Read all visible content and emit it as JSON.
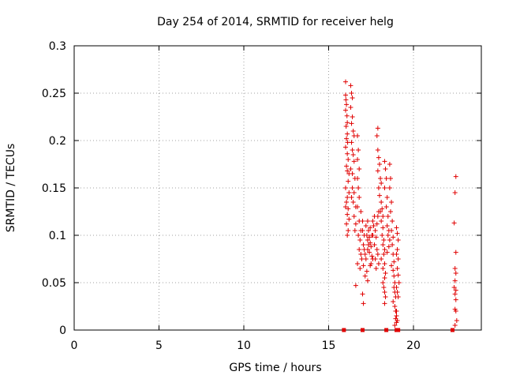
{
  "chart_data": {
    "type": "scatter",
    "title": "Day 254 of 2014, SRMTID for receiver helg",
    "xlabel": "GPS time / hours",
    "ylabel": "SRMTID / TECUs",
    "xlim": [
      0,
      24
    ],
    "ylim": [
      0,
      0.3
    ],
    "xticks": [
      0,
      5,
      10,
      15,
      20
    ],
    "yticks": [
      0,
      0.05,
      0.1,
      0.15,
      0.2,
      0.25,
      0.3
    ],
    "xtick_labels": [
      "0",
      "5",
      "10",
      "15",
      "20"
    ],
    "ytick_labels": [
      "0",
      "0.05",
      "0.1",
      "0.15",
      "0.2",
      "0.25",
      "0.3"
    ],
    "grid": true,
    "legend": "none",
    "marker": "plus",
    "series": [
      {
        "color": "#e00000",
        "points": [
          [
            16.0,
            0.262
          ],
          [
            16.0,
            0.248
          ],
          [
            16.02,
            0.243
          ],
          [
            16.05,
            0.238
          ],
          [
            16.0,
            0.232
          ],
          [
            16.08,
            0.226
          ],
          [
            16.1,
            0.219
          ],
          [
            16.03,
            0.215
          ],
          [
            16.1,
            0.207
          ],
          [
            16.05,
            0.202
          ],
          [
            16.12,
            0.198
          ],
          [
            16.0,
            0.193
          ],
          [
            16.1,
            0.186
          ],
          [
            16.15,
            0.18
          ],
          [
            16.05,
            0.173
          ],
          [
            16.1,
            0.168
          ],
          [
            16.2,
            0.165
          ],
          [
            16.15,
            0.157
          ],
          [
            16.0,
            0.15
          ],
          [
            16.2,
            0.145
          ],
          [
            16.1,
            0.14
          ],
          [
            16.05,
            0.135
          ],
          [
            16.0,
            0.13
          ],
          [
            16.15,
            0.128
          ],
          [
            16.1,
            0.122
          ],
          [
            16.2,
            0.117
          ],
          [
            16.05,
            0.112
          ],
          [
            16.15,
            0.105
          ],
          [
            16.1,
            0.1
          ],
          [
            16.3,
            0.258
          ],
          [
            16.35,
            0.25
          ],
          [
            16.4,
            0.245
          ],
          [
            16.3,
            0.235
          ],
          [
            16.4,
            0.225
          ],
          [
            16.35,
            0.218
          ],
          [
            16.45,
            0.21
          ],
          [
            16.5,
            0.205
          ],
          [
            16.35,
            0.198
          ],
          [
            16.4,
            0.19
          ],
          [
            16.45,
            0.185
          ],
          [
            16.5,
            0.178
          ],
          [
            16.3,
            0.17
          ],
          [
            16.4,
            0.165
          ],
          [
            16.55,
            0.16
          ],
          [
            16.4,
            0.15
          ],
          [
            16.5,
            0.145
          ],
          [
            16.35,
            0.14
          ],
          [
            16.45,
            0.135
          ],
          [
            16.6,
            0.13
          ],
          [
            16.5,
            0.12
          ],
          [
            16.6,
            0.112
          ],
          [
            16.55,
            0.105
          ],
          [
            16.7,
            0.205
          ],
          [
            16.75,
            0.19
          ],
          [
            16.7,
            0.18
          ],
          [
            16.8,
            0.17
          ],
          [
            16.7,
            0.16
          ],
          [
            16.75,
            0.15
          ],
          [
            16.8,
            0.14
          ],
          [
            16.7,
            0.13
          ],
          [
            16.9,
            0.125
          ],
          [
            16.8,
            0.115
          ],
          [
            16.9,
            0.105
          ],
          [
            16.75,
            0.1
          ],
          [
            16.85,
            0.095
          ],
          [
            16.8,
            0.085
          ],
          [
            16.9,
            0.08
          ],
          [
            16.95,
            0.075
          ],
          [
            16.7,
            0.07
          ],
          [
            16.85,
            0.065
          ],
          [
            17.0,
            0.115
          ],
          [
            17.0,
            0.105
          ],
          [
            17.1,
            0.1
          ],
          [
            17.05,
            0.09
          ],
          [
            17.1,
            0.085
          ],
          [
            17.15,
            0.08
          ],
          [
            17.2,
            0.075
          ],
          [
            17.05,
            0.068
          ],
          [
            17.25,
            0.062
          ],
          [
            17.15,
            0.057
          ],
          [
            17.3,
            0.052
          ],
          [
            16.6,
            0.047
          ],
          [
            17.0,
            0.038
          ],
          [
            17.05,
            0.028
          ],
          [
            17.2,
            0.11
          ],
          [
            17.3,
            0.115
          ],
          [
            17.35,
            0.105
          ],
          [
            17.4,
            0.098
          ],
          [
            17.45,
            0.092
          ],
          [
            17.5,
            0.088
          ],
          [
            17.3,
            0.085
          ],
          [
            17.4,
            0.082
          ],
          [
            17.55,
            0.078
          ],
          [
            17.6,
            0.075
          ],
          [
            17.5,
            0.07
          ],
          [
            17.45,
            0.068
          ],
          [
            17.3,
            0.095
          ],
          [
            17.35,
            0.09
          ],
          [
            17.25,
            0.1
          ],
          [
            17.45,
            0.108
          ],
          [
            17.55,
            0.1
          ],
          [
            17.6,
            0.1
          ],
          [
            17.65,
            0.11
          ],
          [
            17.7,
            0.12
          ],
          [
            17.6,
            0.115
          ],
          [
            17.75,
            0.105
          ],
          [
            17.8,
            0.098
          ],
          [
            17.7,
            0.09
          ],
          [
            17.85,
            0.085
          ],
          [
            17.9,
            0.08
          ],
          [
            17.75,
            0.075
          ],
          [
            17.95,
            0.07
          ],
          [
            17.8,
            0.065
          ],
          [
            17.85,
            0.112
          ],
          [
            17.9,
            0.12
          ],
          [
            17.95,
            0.125
          ],
          [
            17.9,
            0.213
          ],
          [
            17.85,
            0.205
          ],
          [
            17.9,
            0.19
          ],
          [
            17.95,
            0.182
          ],
          [
            18.0,
            0.175
          ],
          [
            17.9,
            0.168
          ],
          [
            18.05,
            0.16
          ],
          [
            18.1,
            0.155
          ],
          [
            17.95,
            0.15
          ],
          [
            18.0,
            0.142
          ],
          [
            18.1,
            0.135
          ],
          [
            18.15,
            0.128
          ],
          [
            18.05,
            0.125
          ],
          [
            18.2,
            0.12
          ],
          [
            18.1,
            0.115
          ],
          [
            18.2,
            0.108
          ],
          [
            18.15,
            0.1
          ],
          [
            18.25,
            0.095
          ],
          [
            18.2,
            0.09
          ],
          [
            18.3,
            0.085
          ],
          [
            18.25,
            0.08
          ],
          [
            18.1,
            0.075
          ],
          [
            18.3,
            0.07
          ],
          [
            18.2,
            0.065
          ],
          [
            18.35,
            0.06
          ],
          [
            18.3,
            0.055
          ],
          [
            18.2,
            0.05
          ],
          [
            18.25,
            0.045
          ],
          [
            18.3,
            0.04
          ],
          [
            18.35,
            0.035
          ],
          [
            18.3,
            0.028
          ],
          [
            18.3,
            0.178
          ],
          [
            18.35,
            0.17
          ],
          [
            18.4,
            0.16
          ],
          [
            18.3,
            0.15
          ],
          [
            18.45,
            0.14
          ],
          [
            18.4,
            0.13
          ],
          [
            18.5,
            0.12
          ],
          [
            18.45,
            0.11
          ],
          [
            18.55,
            0.105
          ],
          [
            18.5,
            0.1
          ],
          [
            18.6,
            0.095
          ],
          [
            18.55,
            0.088
          ],
          [
            18.45,
            0.082
          ],
          [
            18.6,
            0.175
          ],
          [
            18.65,
            0.16
          ],
          [
            18.6,
            0.15
          ],
          [
            18.7,
            0.135
          ],
          [
            18.65,
            0.125
          ],
          [
            18.75,
            0.115
          ],
          [
            18.7,
            0.105
          ],
          [
            18.8,
            0.098
          ],
          [
            18.75,
            0.09
          ],
          [
            18.8,
            0.08
          ],
          [
            18.85,
            0.072
          ],
          [
            18.7,
            0.068
          ],
          [
            18.8,
            0.063
          ],
          [
            18.85,
            0.057
          ],
          [
            18.9,
            0.05
          ],
          [
            18.85,
            0.045
          ],
          [
            18.9,
            0.04
          ],
          [
            18.95,
            0.035
          ],
          [
            18.8,
            0.03
          ],
          [
            18.9,
            0.025
          ],
          [
            18.95,
            0.02
          ],
          [
            19.0,
            0.015
          ],
          [
            18.95,
            0.012
          ],
          [
            19.0,
            0.008
          ],
          [
            18.9,
            0.005
          ],
          [
            19.0,
            0.108
          ],
          [
            19.05,
            0.102
          ],
          [
            19.1,
            0.095
          ],
          [
            19.05,
            0.085
          ],
          [
            19.0,
            0.08
          ],
          [
            19.1,
            0.075
          ],
          [
            19.05,
            0.065
          ],
          [
            19.1,
            0.058
          ],
          [
            19.15,
            0.05
          ],
          [
            19.0,
            0.045
          ],
          [
            19.05,
            0.04
          ],
          [
            19.1,
            0.035
          ],
          [
            19.0,
            0.02
          ],
          [
            19.05,
            0.01
          ],
          [
            22.5,
            0.162
          ],
          [
            22.45,
            0.145
          ],
          [
            22.4,
            0.113
          ],
          [
            22.5,
            0.082
          ],
          [
            22.45,
            0.065
          ],
          [
            22.5,
            0.06
          ],
          [
            22.45,
            0.052
          ],
          [
            22.4,
            0.045
          ],
          [
            22.5,
            0.042
          ],
          [
            22.45,
            0.038
          ],
          [
            22.5,
            0.032
          ],
          [
            22.45,
            0.022
          ],
          [
            22.5,
            0.02
          ],
          [
            22.55,
            0.01
          ],
          [
            22.45,
            0.005
          ]
        ]
      }
    ],
    "zero_markers": {
      "color": "#e00000",
      "marker": "square",
      "x": [
        15.9,
        17.0,
        18.4,
        19.0,
        19.1,
        22.3
      ]
    }
  }
}
